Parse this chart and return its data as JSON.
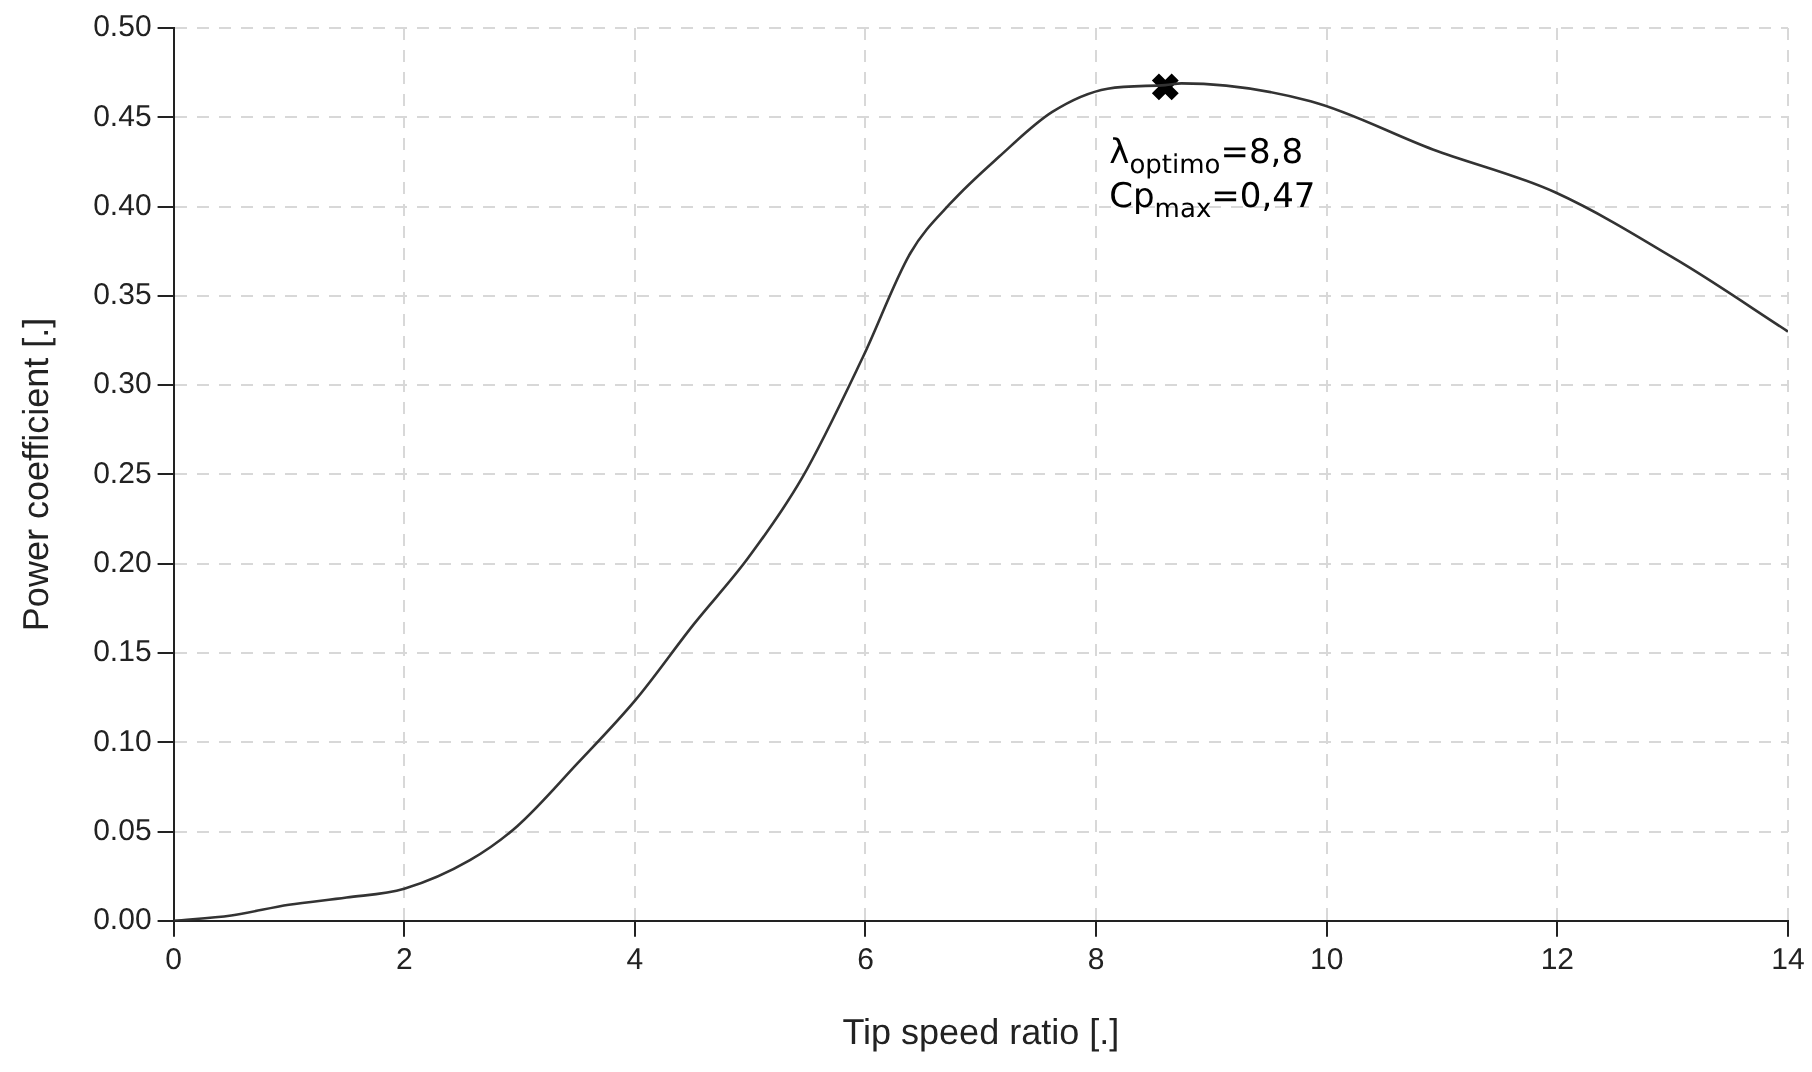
{
  "chart_data": {
    "type": "line",
    "xlabel": "Tip speed ratio [.]",
    "ylabel": "Power coefficient [.]",
    "xlim": [
      0,
      14
    ],
    "xticks": [
      0,
      2,
      4,
      6,
      8,
      10,
      12,
      14
    ],
    "ylim": [
      0,
      0.5
    ],
    "yticks": [
      {
        "value": 0,
        "label": "0.00"
      },
      {
        "value": 0.05,
        "label": "0.05"
      },
      {
        "value": 0.1,
        "label": "0.10"
      },
      {
        "value": 0.15,
        "label": "0.15"
      },
      {
        "value": 0.2,
        "label": "0.20"
      },
      {
        "value": 0.25,
        "label": "0.25"
      },
      {
        "value": 0.3,
        "label": "0.30"
      },
      {
        "value": 0.35,
        "label": "0.35"
      },
      {
        "value": 0.4,
        "label": "0.40"
      },
      {
        "value": 0.45,
        "label": "0.45"
      },
      {
        "value": 0.5,
        "label": "0.50"
      }
    ],
    "grid": true,
    "legend": false,
    "marker": "none",
    "line_style": "solid",
    "series": [
      {
        "color": "#333333",
        "x": [
          0,
          0.5,
          1,
          1.5,
          2,
          2.57,
          2.98,
          3.5,
          4.01,
          4.51,
          4.98,
          5.45,
          5.98,
          6.39,
          6.74,
          7.16,
          7.62,
          8.1,
          8.6,
          8.74,
          9.86,
          10.92,
          11.98,
          13.09,
          14
        ],
        "values": [
          0,
          0.003,
          0.009,
          0.013,
          0.018,
          0.034,
          0.053,
          0.088,
          0.124,
          0.166,
          0.203,
          0.248,
          0.316,
          0.374,
          0.402,
          0.428,
          0.453,
          0.466,
          0.468,
          0.469,
          0.459,
          0.432,
          0.408,
          0.368,
          0.33
        ]
      },
      {
        "type": "scatter",
        "color": "#000000",
        "marker": "cross",
        "x": [
          8.6
        ],
        "values": [
          0.467
        ]
      }
    ],
    "annotations": [
      {
        "text": "λ$_{optimo}$=8,8",
        "x": 8.6,
        "y": 0.467
      },
      {
        "text": "Cp$_{max}$=0,47",
        "x": 8.6,
        "y": 0.467
      }
    ]
  }
}
